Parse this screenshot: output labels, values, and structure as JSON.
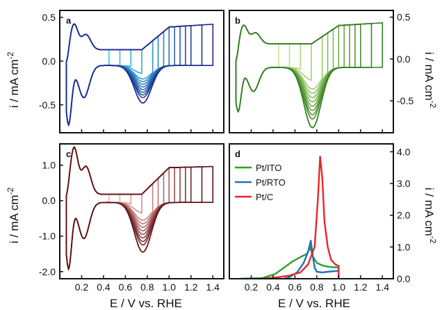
{
  "figure": {
    "x_axis_label": "E / V vs. RHE",
    "y_axis_label_left_top": "i / mA cm",
    "y_axis_label_left_bottom": "i / mA cm",
    "y_axis_label_right_top": "i / mA cm",
    "y_axis_label_right_bottom": "i / mA cm",
    "y_axis_label_superscript": "-2"
  },
  "chart_data": [
    {
      "panel": "a",
      "type": "line",
      "xlim": [
        0.0,
        1.5
      ],
      "ylim": [
        -0.82,
        0.58
      ],
      "yticks": [
        0.5,
        0.0,
        -0.5
      ],
      "ytick_labels": [
        "0.5",
        "0.0",
        "-0.5"
      ],
      "xticks": [],
      "colors": {
        "dark": "#1f2a8a",
        "light": "#38c8f0"
      },
      "upper_limits": [
        0.45,
        0.55,
        0.65,
        0.75,
        0.85,
        0.9,
        0.95,
        1.0,
        1.05,
        1.1,
        1.15,
        1.2,
        1.3,
        1.4
      ],
      "cv_params": {
        "peak_position": 0.76,
        "peak_amplitude": 0.43,
        "h_region_low": -0.67,
        "h_bump": 0.29,
        "dl_anodic": 0.13,
        "dl_cathodic": 0.05,
        "oxide_slope": 0.26
      }
    },
    {
      "panel": "b",
      "type": "line",
      "xlim": [
        0.0,
        1.5
      ],
      "ylim": [
        -0.88,
        0.58
      ],
      "yticks": [
        0.5,
        0.0,
        -0.5
      ],
      "ytick_labels": [
        "0.5",
        "0.0",
        "-0.5"
      ],
      "xticks": [],
      "colors": {
        "dark": "#2e7d1e",
        "light": "#c9e98c"
      },
      "upper_limits": [
        0.45,
        0.55,
        0.65,
        0.75,
        0.85,
        0.9,
        0.95,
        1.0,
        1.05,
        1.1,
        1.15,
        1.2,
        1.3,
        1.4
      ],
      "cv_params": {
        "peak_position": 0.76,
        "peak_amplitude": 0.72,
        "h_region_low": -0.52,
        "h_bump": 0.22,
        "dl_anodic": 0.18,
        "dl_cathodic": 0.1,
        "oxide_slope": 0.22
      }
    },
    {
      "panel": "c",
      "type": "line",
      "xlim": [
        0.0,
        1.5
      ],
      "ylim": [
        -2.2,
        1.6
      ],
      "yticks": [
        1.0,
        0.0,
        -1.0,
        -2.0
      ],
      "ytick_labels": [
        "1.0",
        "0.0",
        "-1.0",
        "-2.0"
      ],
      "xticks": [
        0.2,
        0.4,
        0.6,
        0.8,
        1.0,
        1.2,
        1.4
      ],
      "xtick_labels": [
        "0.2",
        "0.4",
        "0.6",
        "0.8",
        "1.0",
        "1.2",
        "1.4"
      ],
      "colors": {
        "dark": "#5c0f12",
        "light": "#f4b7b0"
      },
      "upper_limits": [
        0.45,
        0.55,
        0.65,
        0.75,
        0.85,
        0.9,
        0.95,
        1.0,
        1.05,
        1.1,
        1.15,
        1.2,
        1.3,
        1.4
      ],
      "cv_params": {
        "peak_position": 0.76,
        "peak_amplitude": 1.4,
        "h_region_low": -1.85,
        "h_bump": 1.3,
        "dl_anodic": 0.18,
        "dl_cathodic": 0.05,
        "oxide_slope": 0.75
      }
    },
    {
      "panel": "d",
      "type": "line",
      "xlim": [
        0.0,
        1.5
      ],
      "ylim": [
        0.0,
        4.25
      ],
      "yticks": [
        0.0,
        1.0,
        2.0,
        3.0,
        4.0
      ],
      "ytick_labels": [
        "0.0",
        "1.0",
        "2.0",
        "3.0",
        "4.0"
      ],
      "xticks": [
        0.2,
        0.4,
        0.6,
        0.8,
        1.0,
        1.2,
        1.4
      ],
      "xtick_labels": [
        "0.2",
        "0.4",
        "0.6",
        "0.8",
        "1.0",
        "1.2",
        "1.4"
      ],
      "legend_position": "top-left",
      "series": [
        {
          "name": "Pt/ITO",
          "color": "#2ca02c",
          "points": [
            [
              0.1,
              0.0
            ],
            [
              0.3,
              0.02
            ],
            [
              0.42,
              0.15
            ],
            [
              0.5,
              0.35
            ],
            [
              0.58,
              0.55
            ],
            [
              0.66,
              0.7
            ],
            [
              0.71,
              0.78
            ],
            [
              0.74,
              1.0
            ],
            [
              0.76,
              0.72
            ],
            [
              0.8,
              0.5
            ],
            [
              0.85,
              0.42
            ],
            [
              0.9,
              0.38
            ],
            [
              1.0,
              0.35
            ],
            [
              1.0,
              0.0
            ]
          ]
        },
        {
          "name": "Pt/RTO",
          "color": "#1f6fbf",
          "points": [
            [
              0.5,
              0.0
            ],
            [
              0.55,
              0.05
            ],
            [
              0.62,
              0.2
            ],
            [
              0.68,
              0.5
            ],
            [
              0.72,
              0.85
            ],
            [
              0.745,
              1.2
            ],
            [
              0.76,
              0.8
            ],
            [
              0.78,
              0.35
            ],
            [
              0.8,
              0.22
            ],
            [
              0.85,
              0.2
            ],
            [
              0.9,
              0.22
            ],
            [
              1.0,
              0.25
            ],
            [
              1.0,
              0.0
            ]
          ]
        },
        {
          "name": "Pt/C",
          "color": "#e8252a",
          "points": [
            [
              0.3,
              0.0
            ],
            [
              0.45,
              0.05
            ],
            [
              0.55,
              0.1
            ],
            [
              0.65,
              0.2
            ],
            [
              0.72,
              0.45
            ],
            [
              0.78,
              1.0
            ],
            [
              0.81,
              2.5
            ],
            [
              0.83,
              3.85
            ],
            [
              0.85,
              3.2
            ],
            [
              0.87,
              1.8
            ],
            [
              0.9,
              1.0
            ],
            [
              0.93,
              0.6
            ],
            [
              0.97,
              0.45
            ],
            [
              1.0,
              0.4
            ],
            [
              1.0,
              0.0
            ]
          ]
        }
      ]
    }
  ]
}
